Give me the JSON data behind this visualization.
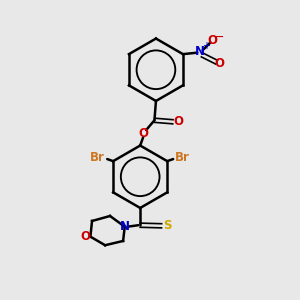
{
  "background_color": "#e8e8e8",
  "bond_color": "#000000",
  "br_color": "#cc7722",
  "n_color": "#0000cc",
  "o_color": "#cc0000",
  "s_color": "#ccaa00",
  "lw": 1.8,
  "lw_double": 1.2,
  "figsize": [
    3.0,
    3.0
  ],
  "dpi": 100,
  "xlim": [
    0,
    10
  ],
  "ylim": [
    0,
    10
  ]
}
